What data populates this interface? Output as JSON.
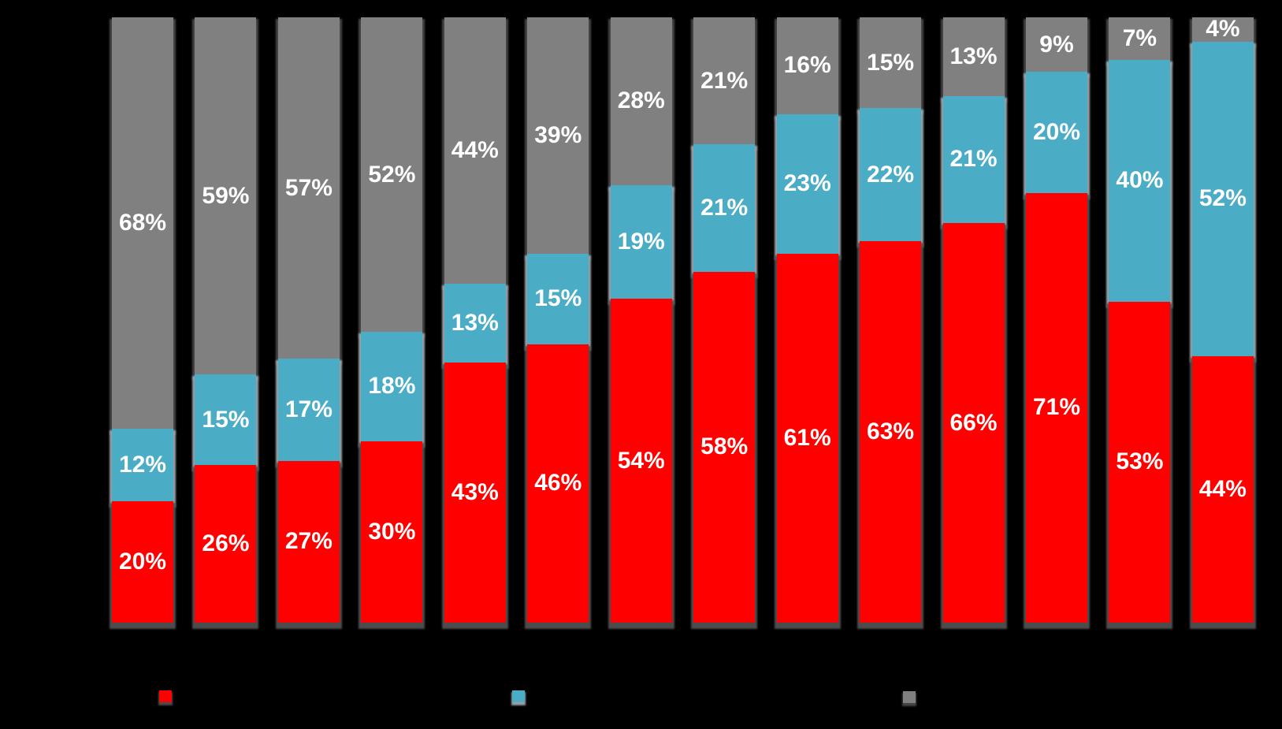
{
  "chart_data": {
    "type": "bar",
    "variant": "stacked-100-percent",
    "title": "",
    "xlabel": "",
    "ylabel": "",
    "background": "#000000",
    "grid": false,
    "axis_labels_visible": false,
    "categories": [
      "",
      "",
      "",
      "",
      "",
      "",
      "",
      "",
      "",
      "",
      "",
      "",
      "",
      ""
    ],
    "series": [
      {
        "name": "red",
        "color": "#ff0000",
        "values": [
          20,
          26,
          27,
          30,
          43,
          46,
          54,
          58,
          61,
          63,
          66,
          71,
          53,
          44
        ]
      },
      {
        "name": "blue",
        "color": "#4bacc6",
        "values": [
          12,
          15,
          17,
          18,
          13,
          15,
          19,
          21,
          23,
          22,
          21,
          20,
          40,
          52
        ]
      },
      {
        "name": "gray",
        "color": "#808080",
        "values": [
          68,
          59,
          57,
          52,
          44,
          39,
          28,
          21,
          16,
          15,
          13,
          9,
          7,
          4
        ]
      }
    ],
    "data_label_format": "{value}%",
    "data_label_color": "#ffffff",
    "legend": {
      "position": "bottom",
      "entries": [
        {
          "series": "red",
          "swatch_color": "#ff0000",
          "label": ""
        },
        {
          "series": "blue",
          "swatch_color": "#4bacc6",
          "label": ""
        },
        {
          "series": "gray",
          "swatch_color": "#808080",
          "label": ""
        }
      ]
    }
  }
}
